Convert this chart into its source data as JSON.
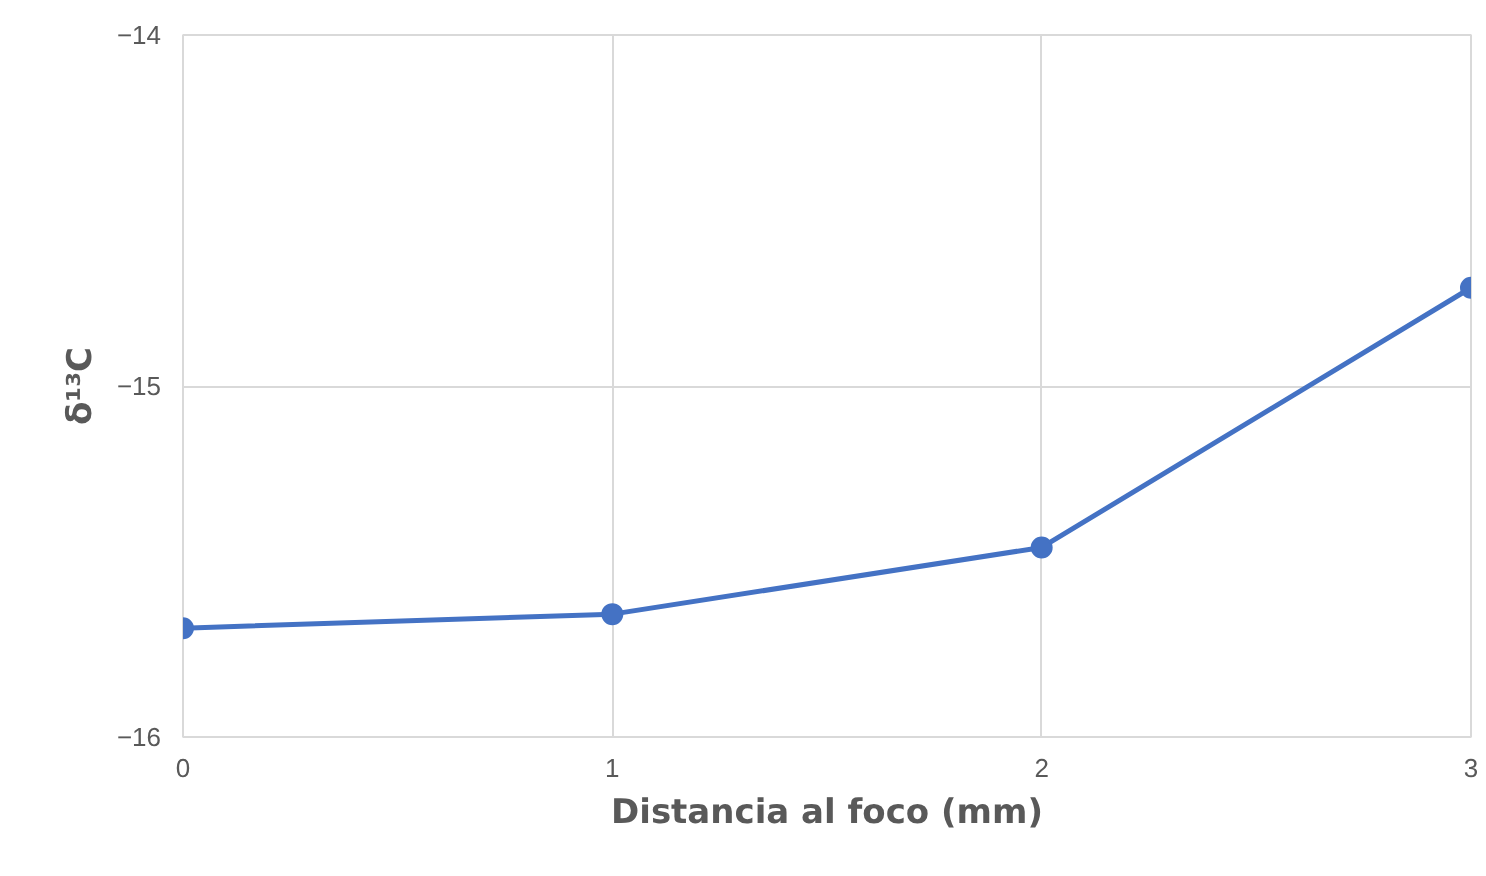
{
  "chart_data": {
    "type": "line",
    "xlabel": "Distancia al foco (mm)",
    "ylabel": "δ¹³C",
    "x": [
      0,
      1,
      2,
      3
    ],
    "series": [
      {
        "color": "#4472c4",
        "values": [
          -15.69,
          -15.65,
          -15.46,
          -14.72
        ]
      }
    ],
    "xlim": [
      0,
      3
    ],
    "ylim": [
      -16,
      -14
    ],
    "xticks": [
      0,
      1,
      2,
      3
    ],
    "yticks": [
      -16,
      -15,
      -14
    ],
    "grid": true,
    "marker": "circle",
    "line_style": "solid"
  }
}
